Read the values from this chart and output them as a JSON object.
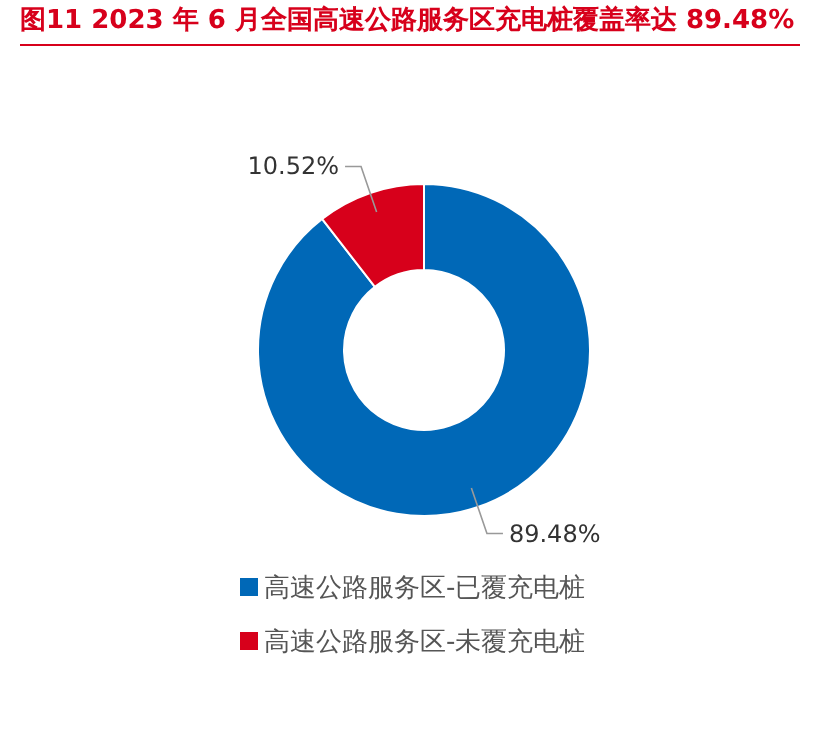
{
  "chart_data": {
    "type": "donut",
    "title": "图11  2023 年 6 月全国高速公路服务区充电桩覆盖率达 89.48%",
    "categories": [
      "高速公路服务区-已覆充电桩",
      "高速公路服务区-未覆充电桩"
    ],
    "values": [
      89.48,
      10.52
    ],
    "colors": [
      "#0068b7",
      "#d7001b"
    ],
    "value_labels": [
      "89.48%",
      "10.52%"
    ],
    "legend": "bottom"
  }
}
